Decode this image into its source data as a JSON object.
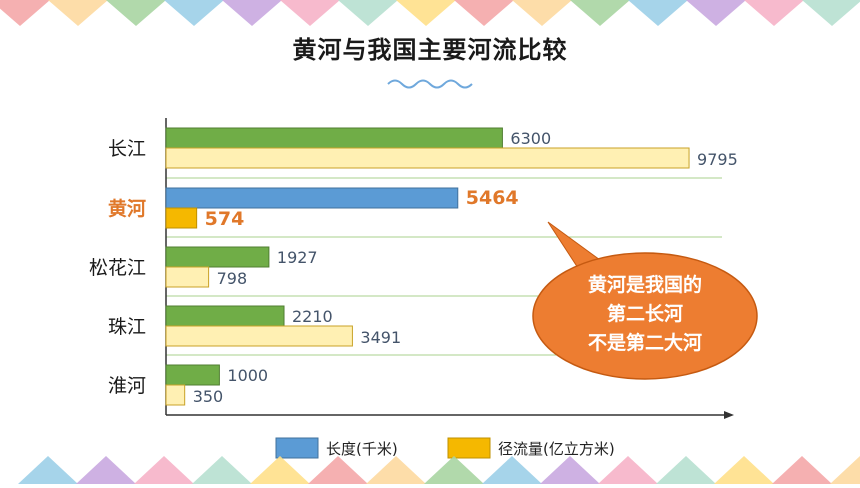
{
  "title": "黄河与我国主要河流比较",
  "callout": {
    "lines": [
      "黄河是我国的",
      "第二长河",
      "不是第二大河"
    ]
  },
  "colors": {
    "length_default": "#70AD47",
    "length_highlight": "#5B9BD5",
    "flow_default": "#FFF0B3",
    "flow_highlight": "#F5B800",
    "highlight_text": "#E0782A",
    "callout_fill": "#ED7D31",
    "band_colors": [
      "#F4A7A8",
      "#FDD9A0",
      "#A8D5A2",
      "#9CCFE8",
      "#C9A8E0",
      "#F6B2C8",
      "#B7E0D0",
      "#FFE08A"
    ]
  },
  "chart_data": {
    "type": "bar",
    "orientation": "horizontal",
    "categories": [
      "长江",
      "黄河",
      "松花江",
      "珠江",
      "淮河"
    ],
    "highlight_category": "黄河",
    "series": [
      {
        "name": "长度(千米)",
        "values": [
          6300,
          5464,
          1927,
          2210,
          1000
        ]
      },
      {
        "name": "径流量(亿立方米)",
        "values": [
          9795,
          574,
          798,
          3491,
          350
        ]
      }
    ],
    "data_labels": [
      [
        "6300",
        "5464",
        "1927",
        "2210",
        "1000"
      ],
      [
        "9795",
        "574",
        "798",
        "3491",
        "350"
      ]
    ],
    "legend_position": "bottom",
    "axis_labels_shown": false,
    "gridlines": "horizontal separators"
  }
}
